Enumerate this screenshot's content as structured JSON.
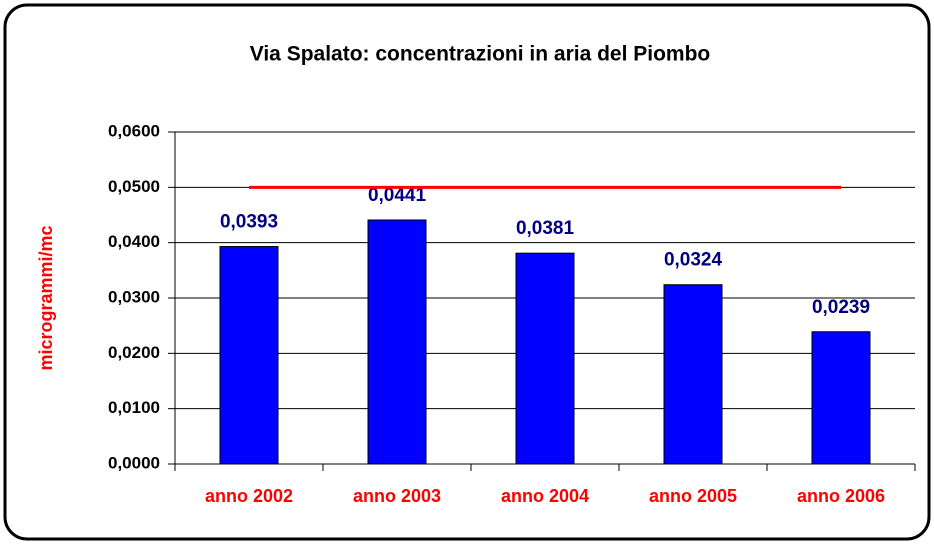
{
  "chart_data": {
    "type": "bar",
    "title": "Via Spalato: concentrazioni in aria del Piombo",
    "y_label": "microgrammi/mc",
    "categories": [
      "anno 2002",
      "anno 2003",
      "anno 2004",
      "anno 2005",
      "anno 2006"
    ],
    "values": [
      0.0393,
      0.0441,
      0.0381,
      0.0324,
      0.0239
    ],
    "value_labels": [
      "0,0393",
      "0,0441",
      "0,0381",
      "0,0324",
      "0,0239"
    ],
    "color": "#0000ff",
    "ylim": [
      0,
      0.06
    ],
    "yticks": [
      {
        "value": 0,
        "label": "0,0000"
      },
      {
        "value": 0.01,
        "label": "0,0100"
      },
      {
        "value": 0.02,
        "label": "0,0200"
      },
      {
        "value": 0.03,
        "label": "0,0300"
      },
      {
        "value": 0.04,
        "label": "0,0400"
      },
      {
        "value": 0.05,
        "label": "0,0500"
      },
      {
        "value": 0.06,
        "label": "0,0600"
      }
    ],
    "grid": true,
    "limit_line": {
      "value": 0.05,
      "color": "#ff0000"
    }
  }
}
